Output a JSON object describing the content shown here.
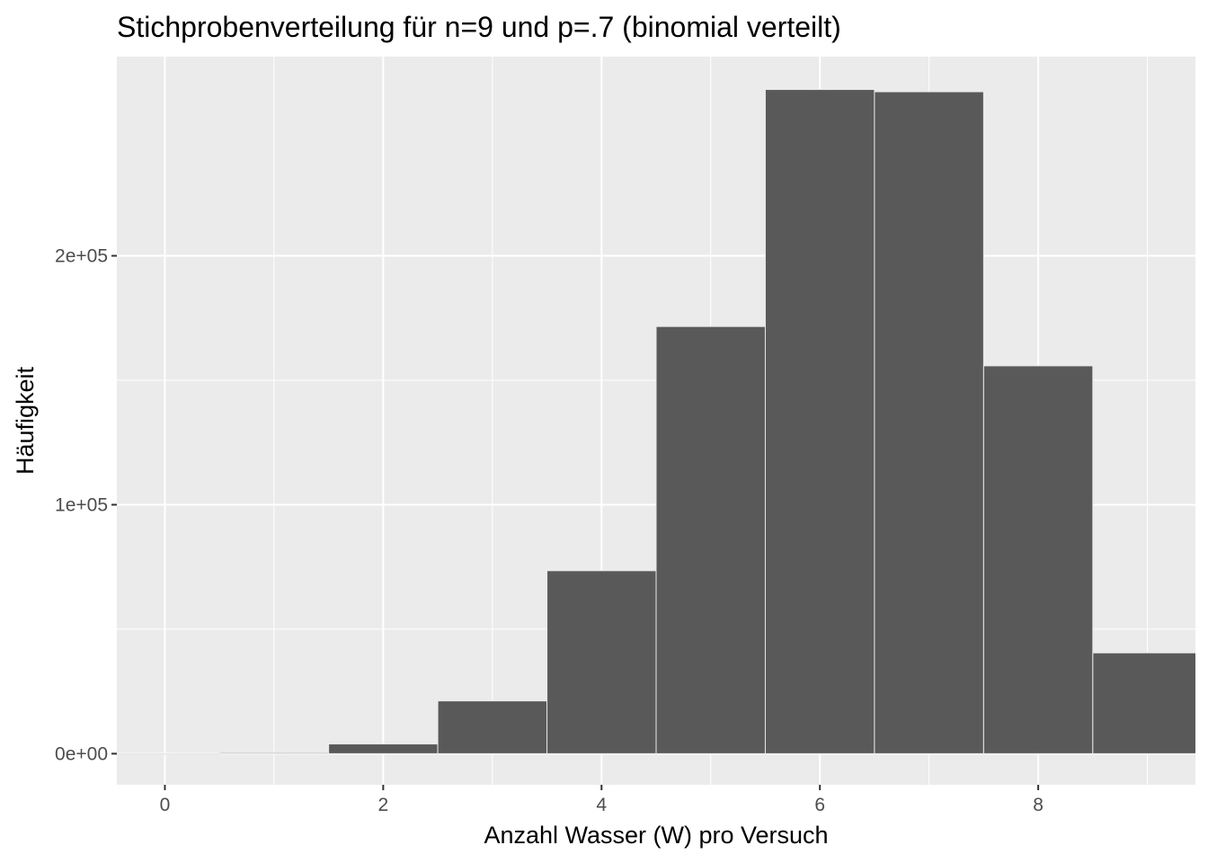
{
  "chart_data": {
    "type": "bar",
    "title": "Stichprobenverteilung für n=9 und p=.7 (binomial verteilt)",
    "xlabel": "Anzahl Wasser (W) pro Versuch",
    "ylabel": "Häufigkeit",
    "x": [
      0,
      1,
      2,
      3,
      4,
      5,
      6,
      7,
      8,
      9
    ],
    "values": [
      20,
      400,
      3900,
      21200,
      73500,
      171600,
      266800,
      265900,
      155800,
      40500
    ],
    "xlim": [
      -0.44,
      9.44
    ],
    "ylim": [
      -12500,
      280000
    ],
    "x_ticks": [
      0,
      2,
      4,
      6,
      8
    ],
    "x_tick_labels": [
      "0",
      "2",
      "4",
      "6",
      "8"
    ],
    "y_ticks": [
      0,
      100000,
      200000
    ],
    "y_tick_labels": [
      "0e+00",
      "1e+05",
      "2e+05"
    ],
    "grid": true,
    "legend": "none",
    "colors": {
      "bar_fill": "#595959",
      "bar_outline": "#e8e8e8",
      "panel_background": "#ebebeb",
      "gridline": "#ffffff",
      "tick_text": "#4d4d4d"
    }
  }
}
